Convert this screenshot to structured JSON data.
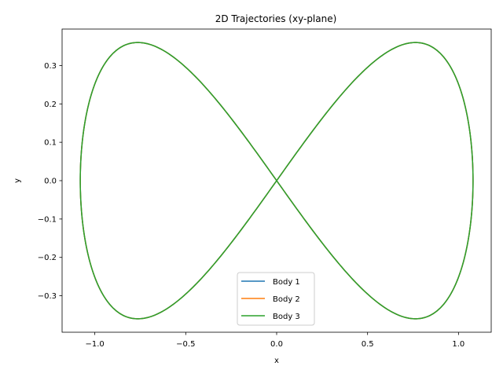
{
  "chart_data": {
    "type": "line",
    "title": "2D Trajectories (xy-plane)",
    "xlabel": "x",
    "ylabel": "y",
    "xlim": [
      -1.18,
      1.18
    ],
    "ylim": [
      -0.395,
      0.395
    ],
    "xticks": [
      -1.0,
      -0.5,
      0.0,
      0.5,
      1.0
    ],
    "xtick_labels": [
      "−1.0",
      "−0.5",
      "0.0",
      "0.5",
      "1.0"
    ],
    "yticks": [
      -0.3,
      -0.2,
      -0.1,
      0.0,
      0.1,
      0.2,
      0.3
    ],
    "ytick_labels": [
      "−0.3",
      "−0.2",
      "−0.1",
      "0.0",
      "0.1",
      "0.2",
      "0.3"
    ],
    "grid": false,
    "legend_position": "lower-center",
    "curve": {
      "shape": "figure-eight",
      "x_amplitude": 1.08,
      "y_amplitude": 0.36
    },
    "series": [
      {
        "name": "Body 1",
        "color": "#1f77b4"
      },
      {
        "name": "Body 2",
        "color": "#ff7f0e"
      },
      {
        "name": "Body 3",
        "color": "#2ca02c"
      }
    ]
  }
}
